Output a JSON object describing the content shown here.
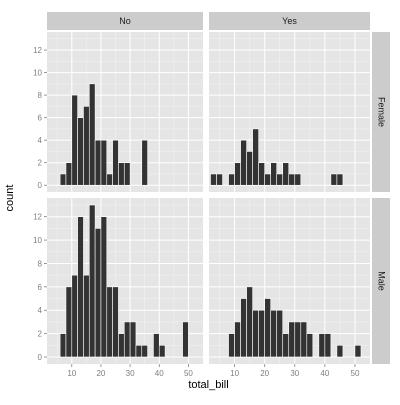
{
  "colors": {
    "panel_bg": "#e5e5e5",
    "strip_bg": "#cccccc",
    "grid_major": "#ffffff",
    "grid_minor": "#f2f2f2",
    "bar_fill": "#333333",
    "bar_outline": "#ffffff",
    "tick_color": "#7f7f7f"
  },
  "chart_data": {
    "type": "bar",
    "subtype": "faceted-histogram",
    "xlabel": "total_bill",
    "ylabel": "count",
    "facet_cols": [
      "No",
      "Yes"
    ],
    "facet_rows": [
      "Female",
      "Male"
    ],
    "binwidth": 2,
    "xlim": [
      1.5,
      55
    ],
    "ylim": [
      -0.6,
      13.6
    ],
    "x_ticks": [
      10,
      20,
      30,
      40,
      50
    ],
    "y_ticks": [
      0,
      2,
      4,
      6,
      8,
      10,
      12
    ],
    "grid": true,
    "panels": [
      {
        "row": "Female",
        "col": "No",
        "bins": [
          {
            "x": 7,
            "count": 1
          },
          {
            "x": 9,
            "count": 2
          },
          {
            "x": 11,
            "count": 8
          },
          {
            "x": 13,
            "count": 6
          },
          {
            "x": 15,
            "count": 7
          },
          {
            "x": 17,
            "count": 9
          },
          {
            "x": 19,
            "count": 4
          },
          {
            "x": 21,
            "count": 4
          },
          {
            "x": 23,
            "count": 1
          },
          {
            "x": 25,
            "count": 4
          },
          {
            "x": 27,
            "count": 2
          },
          {
            "x": 29,
            "count": 2
          },
          {
            "x": 35,
            "count": 4
          }
        ]
      },
      {
        "row": "Female",
        "col": "Yes",
        "bins": [
          {
            "x": 3,
            "count": 1
          },
          {
            "x": 5,
            "count": 1
          },
          {
            "x": 9,
            "count": 1
          },
          {
            "x": 11,
            "count": 2
          },
          {
            "x": 13,
            "count": 4
          },
          {
            "x": 15,
            "count": 3
          },
          {
            "x": 17,
            "count": 5
          },
          {
            "x": 19,
            "count": 2
          },
          {
            "x": 21,
            "count": 1
          },
          {
            "x": 23,
            "count": 2
          },
          {
            "x": 25,
            "count": 1
          },
          {
            "x": 27,
            "count": 2
          },
          {
            "x": 29,
            "count": 1
          },
          {
            "x": 31,
            "count": 1
          },
          {
            "x": 43,
            "count": 1
          },
          {
            "x": 45,
            "count": 1
          }
        ]
      },
      {
        "row": "Male",
        "col": "No",
        "bins": [
          {
            "x": 7,
            "count": 2
          },
          {
            "x": 9,
            "count": 6
          },
          {
            "x": 11,
            "count": 7
          },
          {
            "x": 13,
            "count": 12
          },
          {
            "x": 15,
            "count": 7
          },
          {
            "x": 17,
            "count": 13
          },
          {
            "x": 19,
            "count": 11
          },
          {
            "x": 21,
            "count": 12
          },
          {
            "x": 23,
            "count": 6
          },
          {
            "x": 25,
            "count": 6
          },
          {
            "x": 27,
            "count": 2
          },
          {
            "x": 29,
            "count": 3
          },
          {
            "x": 31,
            "count": 3
          },
          {
            "x": 33,
            "count": 1
          },
          {
            "x": 35,
            "count": 1
          },
          {
            "x": 39,
            "count": 2
          },
          {
            "x": 41,
            "count": 1
          },
          {
            "x": 49,
            "count": 3
          }
        ]
      },
      {
        "row": "Male",
        "col": "Yes",
        "bins": [
          {
            "x": 9,
            "count": 2
          },
          {
            "x": 11,
            "count": 3
          },
          {
            "x": 13,
            "count": 5
          },
          {
            "x": 15,
            "count": 6
          },
          {
            "x": 17,
            "count": 4
          },
          {
            "x": 19,
            "count": 4
          },
          {
            "x": 21,
            "count": 5
          },
          {
            "x": 23,
            "count": 4
          },
          {
            "x": 25,
            "count": 4
          },
          {
            "x": 27,
            "count": 2
          },
          {
            "x": 29,
            "count": 3
          },
          {
            "x": 31,
            "count": 3
          },
          {
            "x": 33,
            "count": 3
          },
          {
            "x": 35,
            "count": 2
          },
          {
            "x": 39,
            "count": 2
          },
          {
            "x": 41,
            "count": 2
          },
          {
            "x": 45,
            "count": 1
          },
          {
            "x": 51,
            "count": 1
          }
        ]
      }
    ]
  }
}
